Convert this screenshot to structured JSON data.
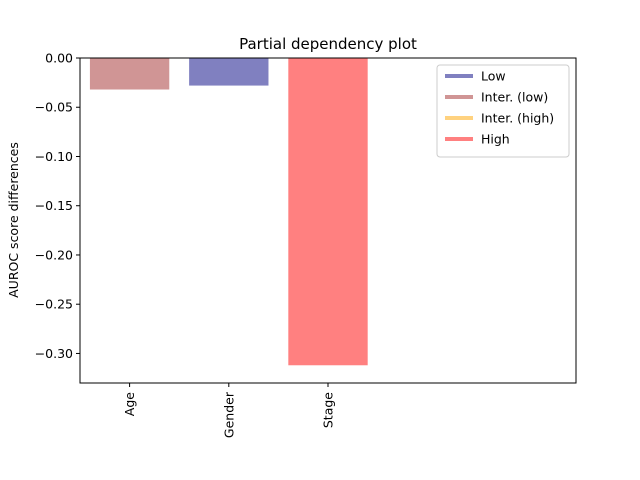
{
  "chart_data": {
    "type": "bar",
    "title": "Partial dependency plot",
    "xlabel": "",
    "ylabel": "AUROC score differences",
    "ylim": [
      -0.33,
      0.0
    ],
    "yticks": [
      0.0,
      -0.05,
      -0.1,
      -0.15,
      -0.2,
      -0.25,
      -0.3
    ],
    "ytick_labels": [
      "0.00",
      "−0.05",
      "−0.10",
      "−0.15",
      "−0.20",
      "−0.25",
      "−0.30"
    ],
    "categories": [
      "Age",
      "Gender",
      "Stage"
    ],
    "values": [
      -0.032,
      -0.028,
      -0.312
    ],
    "bar_levels": [
      "Inter. (low)",
      "Low",
      "High"
    ],
    "x_slots": 5,
    "legend": {
      "placement": "upper-right",
      "entries": [
        {
          "label": "Low",
          "color": "#8080c0"
        },
        {
          "label": "Inter. (low)",
          "color": "#d09595"
        },
        {
          "label": "Inter. (high)",
          "color": "#ffd27f"
        },
        {
          "label": "High",
          "color": "#ff8080"
        }
      ]
    },
    "grid": false
  }
}
